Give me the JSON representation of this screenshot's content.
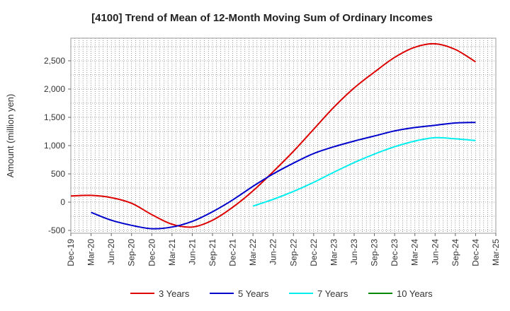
{
  "chart_data": {
    "type": "line",
    "title": "[4100]  Trend of Mean of 12-Month Moving Sum of Ordinary Incomes",
    "xlabel": "",
    "ylabel": "Amount (million yen)",
    "ylim": [
      -550,
      2900
    ],
    "yticks": [
      -500,
      0,
      500,
      1000,
      1500,
      2000,
      2500
    ],
    "ytick_labels": [
      "-500",
      "0",
      "500",
      "1,000",
      "1,500",
      "2,000",
      "2,500"
    ],
    "categories": [
      "Dec-19",
      "Mar-20",
      "Jun-20",
      "Sep-20",
      "Dec-20",
      "Mar-21",
      "Jun-21",
      "Sep-21",
      "Dec-21",
      "Mar-22",
      "Jun-22",
      "Sep-22",
      "Dec-22",
      "Mar-23",
      "Jun-23",
      "Sep-23",
      "Dec-23",
      "Mar-24",
      "Jun-24",
      "Sep-24",
      "Dec-24",
      "Mar-25"
    ],
    "grid": true,
    "legend": "bottom",
    "series": [
      {
        "name": "3 Years",
        "color": "#dd0000",
        "values": [
          110,
          120,
          80,
          -20,
          -220,
          -390,
          -440,
          -320,
          -90,
          200,
          540,
          900,
          1290,
          1680,
          2020,
          2300,
          2560,
          2740,
          2800,
          2700,
          2480,
          null
        ]
      },
      {
        "name": "5 Years",
        "color": "#0000cc",
        "values": [
          null,
          -180,
          -320,
          -410,
          -470,
          -440,
          -340,
          -170,
          40,
          280,
          500,
          690,
          860,
          980,
          1080,
          1170,
          1260,
          1320,
          1360,
          1400,
          1410,
          null
        ]
      },
      {
        "name": "7 Years",
        "color": "#00eeee",
        "values": [
          null,
          null,
          null,
          null,
          null,
          null,
          null,
          null,
          null,
          -70,
          50,
          190,
          350,
          530,
          700,
          850,
          980,
          1080,
          1140,
          1120,
          1090,
          null
        ]
      },
      {
        "name": "10 Years",
        "color": "#008800",
        "values": [
          null,
          null,
          null,
          null,
          null,
          null,
          null,
          null,
          null,
          null,
          null,
          null,
          null,
          null,
          null,
          null,
          null,
          null,
          null,
          null,
          null,
          null
        ]
      }
    ]
  }
}
